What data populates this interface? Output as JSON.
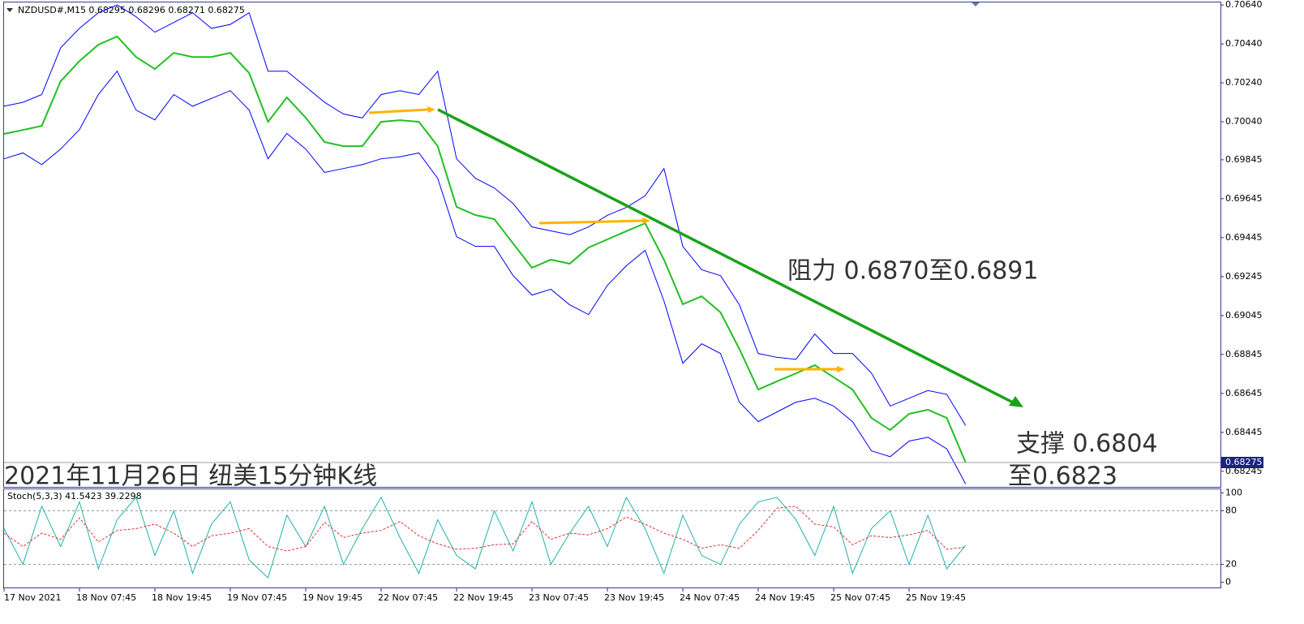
{
  "chart_data": [
    {
      "type": "line",
      "title": "NZDUSD#,M15  0.68295 0.68296 0.68271 0.68275",
      "annotations": [
        "阻力 0.6870至0.6891",
        "支撑 0.6804",
        "至0.6823",
        "2021年11月26日 纽美15分钟K线"
      ],
      "current_label": "0.68275",
      "categories": [
        "17 Nov 2021",
        null,
        null,
        null,
        "18 Nov 07:45",
        null,
        null,
        null,
        "18 Nov 19:45",
        null,
        null,
        null,
        "19 Nov 07:45",
        null,
        null,
        null,
        "19 Nov 19:45",
        null,
        null,
        null,
        "22 Nov 07:45",
        null,
        null,
        null,
        "22 Nov 19:45",
        null,
        null,
        null,
        "23 Nov 07:45",
        null,
        null,
        null,
        "23 Nov 19:45",
        null,
        null,
        null,
        "24 Nov 07:45",
        null,
        null,
        null,
        "24 Nov 19:45",
        null,
        null,
        null,
        "25 Nov 07:45",
        null,
        null,
        null,
        "25 Nov 19:45",
        null,
        null,
        null
      ],
      "series": [
        {
          "name": "Close",
          "color": "#22c022",
          "values": [
            0.69978,
            0.69998,
            0.70019,
            0.70248,
            0.70352,
            0.70436,
            0.70478,
            0.70373,
            0.70311,
            0.70394,
            0.70373,
            0.70373,
            0.70394,
            0.7029,
            0.7004,
            0.70165,
            0.70061,
            0.69936,
            0.69915,
            0.69915,
            0.7004,
            0.70048,
            0.7004,
            0.69915,
            0.69603,
            0.69561,
            0.6954,
            0.69415,
            0.6929,
            0.69332,
            0.69311,
            0.69394,
            0.69436,
            0.69478,
            0.69519,
            0.69332,
            0.69103,
            0.69144,
            0.69061,
            0.68873,
            0.68665,
            0.68707,
            0.68748,
            0.6879,
            0.68728,
            0.68665,
            0.68519,
            0.68457,
            0.6854,
            0.68561,
            0.68519,
            0.6829
          ]
        },
        {
          "name": "Upper",
          "color": "#0000ff",
          "values": [
            0.7012,
            0.7014,
            0.7018,
            0.7042,
            0.7052,
            0.706,
            0.7064,
            0.7058,
            0.705,
            0.7055,
            0.706,
            0.7052,
            0.7054,
            0.706,
            0.703,
            0.703,
            0.7022,
            0.7014,
            0.7008,
            0.7006,
            0.7018,
            0.702,
            0.7018,
            0.703,
            0.6985,
            0.6975,
            0.697,
            0.6962,
            0.695,
            0.6948,
            0.6946,
            0.695,
            0.6956,
            0.696,
            0.6966,
            0.698,
            0.694,
            0.6928,
            0.6925,
            0.691,
            0.6885,
            0.6883,
            0.6882,
            0.6895,
            0.6885,
            0.6885,
            0.6875,
            0.6858,
            0.6862,
            0.6866,
            0.6864,
            0.6848
          ]
        },
        {
          "name": "Lower",
          "color": "#0000ff",
          "values": [
            0.6985,
            0.6988,
            0.6982,
            0.699,
            0.7,
            0.7018,
            0.703,
            0.701,
            0.7005,
            0.7018,
            0.7012,
            0.7016,
            0.702,
            0.701,
            0.6985,
            0.6998,
            0.699,
            0.6978,
            0.698,
            0.6982,
            0.6985,
            0.6986,
            0.6988,
            0.6975,
            0.6945,
            0.694,
            0.694,
            0.6925,
            0.6915,
            0.6918,
            0.691,
            0.6905,
            0.692,
            0.693,
            0.6938,
            0.6912,
            0.688,
            0.689,
            0.6885,
            0.686,
            0.685,
            0.6855,
            0.686,
            0.6862,
            0.6858,
            0.685,
            0.6835,
            0.6832,
            0.684,
            0.6842,
            0.6836,
            0.6818
          ]
        }
      ],
      "ylim": [
        0.68165,
        0.70653
      ],
      "yticks": [
        {
          "value": 0.7064,
          "label": "0.70640"
        },
        {
          "value": 0.7044,
          "label": "0.70440"
        },
        {
          "value": 0.7024,
          "label": "0.70240"
        },
        {
          "value": 0.7004,
          "label": "0.70040"
        },
        0.69845,
        0.69645,
        0.69445,
        0.69245,
        0.69045,
        0.68845,
        0.68645,
        0.68445,
        0.68245
      ]
    },
    {
      "type": "line",
      "title": "Stoch(5,3,3) 41.5423 39.2298",
      "series": [
        {
          "name": "Main",
          "color": "#20b2aa",
          "values": [
            60,
            20,
            85,
            40,
            90,
            15,
            70,
            95,
            30,
            80,
            10,
            65,
            90,
            25,
            5,
            75,
            40,
            85,
            20,
            60,
            95,
            50,
            10,
            70,
            30,
            15,
            80,
            35,
            90,
            20,
            55,
            85,
            40,
            95,
            60,
            10,
            75,
            30,
            20,
            65,
            90,
            95,
            70,
            30,
            85,
            10,
            60,
            80,
            20,
            75,
            15,
            41.5423
          ]
        },
        {
          "name": "Signal",
          "color": "#e03030",
          "values": [
            55,
            40,
            55,
            48,
            72,
            45,
            58,
            60,
            65,
            55,
            40,
            52,
            55,
            60,
            40,
            35,
            40,
            67,
            50,
            55,
            58,
            68,
            52,
            43,
            37,
            38,
            42,
            43,
            68,
            48,
            55,
            53,
            60,
            73,
            65,
            55,
            48,
            38,
            42,
            38,
            58,
            83,
            85,
            65,
            62,
            42,
            52,
            50,
            53,
            58,
            37,
            39.2298
          ]
        }
      ],
      "ylim": [
        -4,
        104
      ],
      "yticks": [
        100,
        80,
        20,
        0
      ]
    }
  ]
}
